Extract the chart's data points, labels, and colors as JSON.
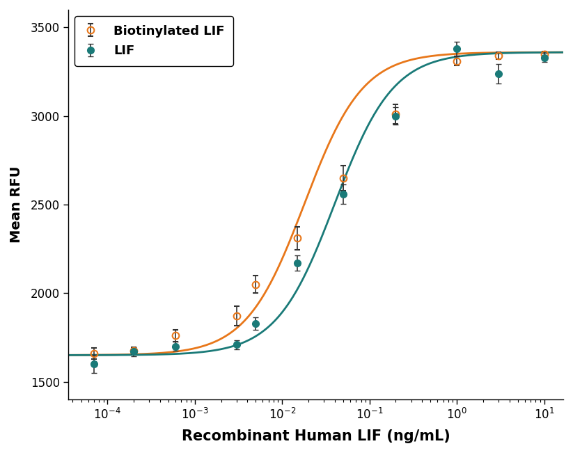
{
  "title": "",
  "xlabel": "Recombinant Human LIF (ng/mL)",
  "ylabel": "Mean RFU",
  "ylim": [
    1400,
    3600
  ],
  "yticks": [
    1500,
    2000,
    2500,
    3000,
    3500
  ],
  "biotin_x": [
    7e-05,
    0.0002,
    0.0006,
    0.003,
    0.005,
    0.015,
    0.05,
    0.2,
    1.0,
    3.0,
    10.0
  ],
  "biotin_y": [
    1660,
    1675,
    1760,
    1870,
    2050,
    2310,
    2650,
    3010,
    3310,
    3340,
    3350
  ],
  "biotin_yerr": [
    30,
    20,
    35,
    55,
    50,
    65,
    70,
    55,
    25,
    20,
    15
  ],
  "lif_x": [
    7e-05,
    0.0002,
    0.0006,
    0.003,
    0.005,
    0.015,
    0.05,
    0.2,
    1.0,
    3.0,
    10.0
  ],
  "lif_y": [
    1600,
    1670,
    1700,
    1710,
    1830,
    2170,
    2560,
    3000,
    3380,
    3240,
    3330
  ],
  "lif_yerr": [
    50,
    25,
    25,
    25,
    35,
    45,
    55,
    50,
    40,
    55,
    25
  ],
  "biotin_color": "#E8771A",
  "biotin_line_color": "#E8771A",
  "lif_color": "#1A7A78",
  "lif_line_color": "#1A7A78",
  "legend_labels": [
    "Biotinylated LIF",
    "LIF"
  ],
  "xlabel_fontsize": 15,
  "ylabel_fontsize": 14,
  "tick_fontsize": 12,
  "legend_fontsize": 13,
  "background_color": "#ffffff"
}
